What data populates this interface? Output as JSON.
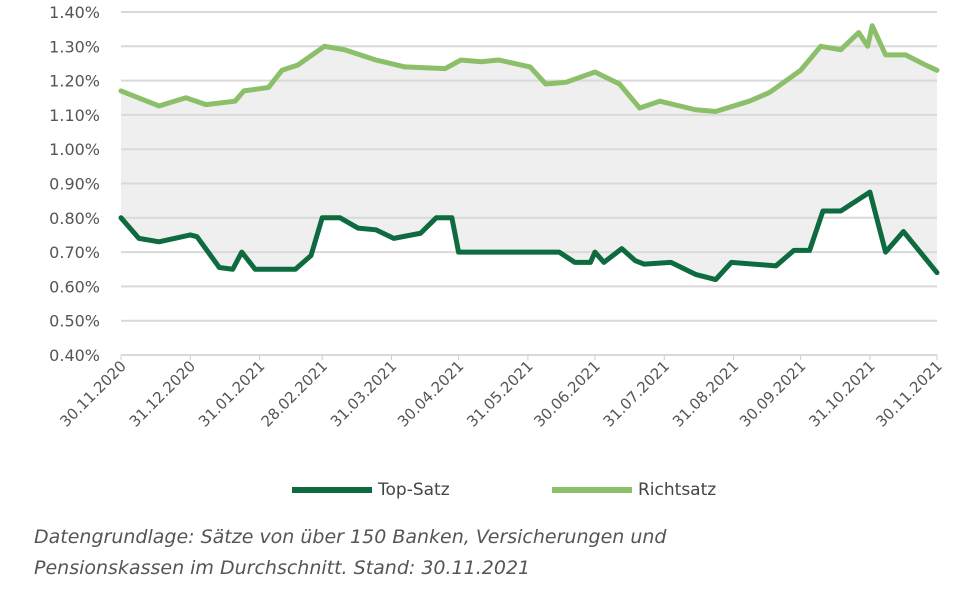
{
  "chart_data": {
    "type": "line",
    "title": "",
    "xlabel": "",
    "ylabel": "",
    "x_unit": "days since 30.11.2020",
    "xlim": [
      0,
      365
    ],
    "ylim": [
      0.4,
      1.4
    ],
    "y_ticks": [
      "0.40%",
      "0.50%",
      "0.60%",
      "0.70%",
      "0.80%",
      "0.90%",
      "1.00%",
      "1.10%",
      "1.20%",
      "1.30%",
      "1.40%"
    ],
    "y_tick_values": [
      0.4,
      0.5,
      0.6,
      0.7,
      0.8,
      0.9,
      1.0,
      1.1,
      1.2,
      1.3,
      1.4
    ],
    "x_ticks": [
      "30.11.2020",
      "31.12.2020",
      "31.01.2021",
      "28.02.2021",
      "31.03.2021",
      "30.04.2021",
      "31.05.2021",
      "30.06.2021",
      "31.07.2021",
      "31.08.2021",
      "30.09.2021",
      "31.10.2021",
      "30.11.2021"
    ],
    "x_tick_values": [
      0,
      31,
      62,
      90,
      121,
      151,
      182,
      212,
      243,
      274,
      304,
      335,
      365
    ],
    "grid": true,
    "band_between_series": true,
    "legend_position": "bottom",
    "series": [
      {
        "name": "Top-Satz",
        "color": "#0d6b3f",
        "x": [
          0,
          8,
          17,
          31,
          34,
          44,
          50,
          54,
          60,
          78,
          85,
          90,
          98,
          106,
          114,
          122,
          134,
          141,
          148,
          151,
          161,
          196,
          203,
          210,
          212,
          216,
          224,
          230,
          234,
          246,
          257,
          266,
          273,
          293,
          301,
          308,
          314,
          322,
          335,
          342,
          350,
          365
        ],
        "values": [
          0.8,
          0.74,
          0.73,
          0.75,
          0.745,
          0.655,
          0.65,
          0.7,
          0.65,
          0.65,
          0.69,
          0.8,
          0.8,
          0.77,
          0.765,
          0.74,
          0.755,
          0.8,
          0.8,
          0.7,
          0.7,
          0.7,
          0.67,
          0.67,
          0.7,
          0.67,
          0.71,
          0.675,
          0.665,
          0.67,
          0.635,
          0.62,
          0.67,
          0.66,
          0.705,
          0.705,
          0.82,
          0.82,
          0.875,
          0.7,
          0.76,
          0.64
        ]
      },
      {
        "name": "Richtsatz",
        "color": "#8cbf6a",
        "x": [
          0,
          17,
          29,
          38,
          51,
          55,
          66,
          72,
          79,
          91,
          100,
          114,
          127,
          145,
          152,
          161,
          169,
          183,
          190,
          199,
          212,
          223,
          232,
          241,
          257,
          266,
          281,
          290,
          304,
          313,
          322,
          330,
          334,
          336,
          342,
          351,
          360,
          365
        ],
        "values": [
          1.17,
          1.126,
          1.15,
          1.13,
          1.14,
          1.17,
          1.18,
          1.23,
          1.245,
          1.3,
          1.29,
          1.26,
          1.24,
          1.235,
          1.26,
          1.255,
          1.26,
          1.24,
          1.19,
          1.195,
          1.225,
          1.19,
          1.12,
          1.14,
          1.115,
          1.11,
          1.14,
          1.165,
          1.23,
          1.3,
          1.29,
          1.34,
          1.3,
          1.36,
          1.275,
          1.275,
          1.245,
          1.23
        ]
      }
    ]
  },
  "caption": {
    "line1": "Datengrundlage: Sätze von über 150 Banken, Versicherungen und",
    "line2": "Pensionskassen im Durchschnitt. Stand: 30.11.2021"
  }
}
